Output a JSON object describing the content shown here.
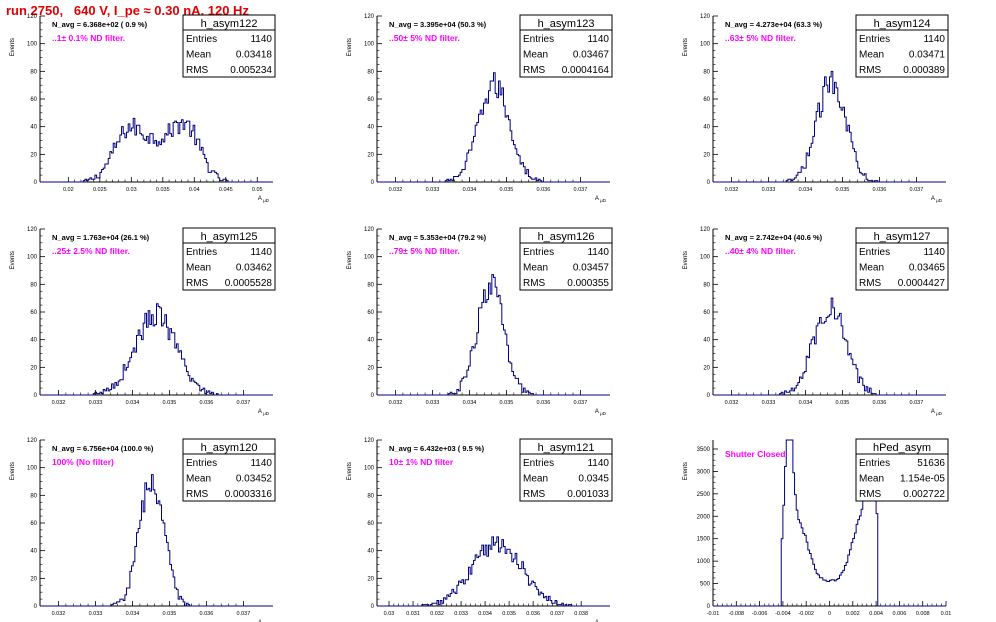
{
  "page": {
    "title": "run 2750,   640 V, I_pe ≈ 0.30 nA, 120 Hz"
  },
  "colors": {
    "title": "#e00000",
    "histogram": "#00007f",
    "annotation": "#ff00ff",
    "axis": "#000000"
  },
  "chart_data": [
    {
      "type": "histogram",
      "name": "h_asym122",
      "stats": [
        {
          "label": "Entries",
          "value": "1140"
        },
        {
          "label": "Mean",
          "value": "0.03418"
        },
        {
          "label": "RMS",
          "value": "0.005234"
        }
      ],
      "n_avg": "N_avg = 6.368e+02 ( 0.9 %)",
      "annotation": "..1± 0.1% ND filter.",
      "ylabel": "Events",
      "xlabel": "A_μD",
      "xlim": [
        0.0155,
        0.0525
      ],
      "ylim": [
        0,
        120
      ],
      "yticks": [
        0,
        20,
        40,
        60,
        80,
        100,
        120
      ],
      "xticks": [
        0.02,
        0.025,
        0.03,
        0.035,
        0.04,
        0.045,
        0.05
      ],
      "xtick_labels": [
        "0.02",
        "0.025",
        "0.03",
        "0.035",
        "0.04",
        "0.045",
        "0.05"
      ],
      "peak": {
        "center": 0.0342,
        "width": 0.0055,
        "height": 38,
        "shape": "bimodal"
      }
    },
    {
      "type": "histogram",
      "name": "h_asym123",
      "stats": [
        {
          "label": "Entries",
          "value": "1140"
        },
        {
          "label": "Mean",
          "value": "0.03467"
        },
        {
          "label": "RMS",
          "value": "0.0004164"
        }
      ],
      "n_avg": "N_avg = 3.395e+04 (50.3 %)",
      "annotation": "..50± 5% ND filter.",
      "ylabel": "Events",
      "xlabel": "A_μD",
      "xlim": [
        0.0315,
        0.0378
      ],
      "ylim": [
        0,
        120
      ],
      "yticks": [
        0,
        20,
        40,
        60,
        80,
        100,
        120
      ],
      "xticks": [
        0.032,
        0.033,
        0.034,
        0.035,
        0.036,
        0.037
      ],
      "xtick_labels": [
        "0.032",
        "0.033",
        "0.034",
        "0.035",
        "0.036",
        "0.037"
      ],
      "peak": {
        "center": 0.03467,
        "width": 0.00042,
        "height": 70,
        "shape": "gauss"
      }
    },
    {
      "type": "histogram",
      "name": "h_asym124",
      "stats": [
        {
          "label": "Entries",
          "value": "1140"
        },
        {
          "label": "Mean",
          "value": "0.03471"
        },
        {
          "label": "RMS",
          "value": "0.000389"
        }
      ],
      "n_avg": "N_avg = 4.273e+04 (63.3 %)",
      "annotation": "..63± 5% ND filter.",
      "ylabel": "Events",
      "xlabel": "A_μD",
      "xlim": [
        0.0315,
        0.0378
      ],
      "ylim": [
        0,
        120
      ],
      "yticks": [
        0,
        20,
        40,
        60,
        80,
        100,
        120
      ],
      "xticks": [
        0.032,
        0.033,
        0.034,
        0.035,
        0.036,
        0.037
      ],
      "xtick_labels": [
        "0.032",
        "0.033",
        "0.034",
        "0.035",
        "0.036",
        "0.037"
      ],
      "peak": {
        "center": 0.03471,
        "width": 0.00039,
        "height": 74,
        "shape": "gauss"
      }
    },
    {
      "type": "histogram",
      "name": "h_asym125",
      "stats": [
        {
          "label": "Entries",
          "value": "1140"
        },
        {
          "label": "Mean",
          "value": "0.03462"
        },
        {
          "label": "RMS",
          "value": "0.0005528"
        }
      ],
      "n_avg": "N_avg = 1.763e+04 (26.1 %)",
      "annotation": "..25± 2.5% ND filter.",
      "ylabel": "Events",
      "xlabel": "A_μD",
      "xlim": [
        0.0315,
        0.0378
      ],
      "ylim": [
        0,
        120
      ],
      "yticks": [
        0,
        20,
        40,
        60,
        80,
        100,
        120
      ],
      "xticks": [
        0.032,
        0.033,
        0.034,
        0.035,
        0.036,
        0.037
      ],
      "xtick_labels": [
        "0.032",
        "0.033",
        "0.034",
        "0.035",
        "0.036",
        "0.037"
      ],
      "peak": {
        "center": 0.03462,
        "width": 0.00055,
        "height": 58,
        "shape": "gauss"
      }
    },
    {
      "type": "histogram",
      "name": "h_asym126",
      "stats": [
        {
          "label": "Entries",
          "value": "1140"
        },
        {
          "label": "Mean",
          "value": "0.03457"
        },
        {
          "label": "RMS",
          "value": "0.000355"
        }
      ],
      "n_avg": "N_avg = 5.353e+04 (79.2 %)",
      "annotation": "..79± 5% ND filter.",
      "ylabel": "Events",
      "xlabel": "A_μD",
      "xlim": [
        0.0315,
        0.0378
      ],
      "ylim": [
        0,
        120
      ],
      "yticks": [
        0,
        20,
        40,
        60,
        80,
        100,
        120
      ],
      "xticks": [
        0.032,
        0.033,
        0.034,
        0.035,
        0.036,
        0.037
      ],
      "xtick_labels": [
        "0.032",
        "0.033",
        "0.034",
        "0.035",
        "0.036",
        "0.037"
      ],
      "peak": {
        "center": 0.03457,
        "width": 0.00036,
        "height": 80,
        "shape": "gauss"
      }
    },
    {
      "type": "histogram",
      "name": "h_asym127",
      "stats": [
        {
          "label": "Entries",
          "value": "1140"
        },
        {
          "label": "Mean",
          "value": "0.03465"
        },
        {
          "label": "RMS",
          "value": "0.0004427"
        }
      ],
      "n_avg": "N_avg = 2.742e+04 (40.6 %)",
      "annotation": "..40± 4% ND filter.",
      "ylabel": "Events",
      "xlabel": "A_μD",
      "xlim": [
        0.0315,
        0.0378
      ],
      "ylim": [
        0,
        120
      ],
      "yticks": [
        0,
        20,
        40,
        60,
        80,
        100,
        120
      ],
      "xticks": [
        0.032,
        0.033,
        0.034,
        0.035,
        0.036,
        0.037
      ],
      "xtick_labels": [
        "0.032",
        "0.033",
        "0.034",
        "0.035",
        "0.036",
        "0.037"
      ],
      "peak": {
        "center": 0.03465,
        "width": 0.00044,
        "height": 64,
        "shape": "gauss"
      }
    },
    {
      "type": "histogram",
      "name": "h_asym120",
      "stats": [
        {
          "label": "Entries",
          "value": "1140"
        },
        {
          "label": "Mean",
          "value": "0.03452"
        },
        {
          "label": "RMS",
          "value": "0.0003316"
        }
      ],
      "n_avg": "N_avg = 6.756e+04 (100.0 %)",
      "annotation": "100% (No filter)",
      "ylabel": "Events",
      "xlabel": "A_μD",
      "xlim": [
        0.0315,
        0.0378
      ],
      "ylim": [
        0,
        120
      ],
      "yticks": [
        0,
        20,
        40,
        60,
        80,
        100,
        120
      ],
      "xticks": [
        0.032,
        0.033,
        0.034,
        0.035,
        0.036,
        0.037
      ],
      "xtick_labels": [
        "0.032",
        "0.033",
        "0.034",
        "0.035",
        "0.036",
        "0.037"
      ],
      "peak": {
        "center": 0.03452,
        "width": 0.00033,
        "height": 92,
        "shape": "gauss"
      }
    },
    {
      "type": "histogram",
      "name": "h_asym121",
      "stats": [
        {
          "label": "Entries",
          "value": "1140"
        },
        {
          "label": "Mean",
          "value": "0.0345"
        },
        {
          "label": "RMS",
          "value": "0.001033"
        }
      ],
      "n_avg": "N_avg = 6.432e+03 ( 9.5 %)",
      "annotation": "10± 1% ND filter",
      "ylabel": "Events",
      "xlabel": "A_μD",
      "xlim": [
        0.0295,
        0.0392
      ],
      "ylim": [
        0,
        120
      ],
      "yticks": [
        0,
        20,
        40,
        60,
        80,
        100,
        120
      ],
      "xticks": [
        0.03,
        0.031,
        0.032,
        0.033,
        0.034,
        0.035,
        0.036,
        0.037,
        0.038
      ],
      "xtick_labels": [
        "0.03",
        "0.031",
        "0.032",
        "0.033",
        "0.034",
        "0.035",
        "0.036",
        "0.037",
        "0.038"
      ],
      "peak": {
        "center": 0.0345,
        "width": 0.00103,
        "height": 46,
        "shape": "gauss"
      }
    },
    {
      "type": "histogram",
      "name": "hPed_asym",
      "stats": [
        {
          "label": "Entries",
          "value": "51636"
        },
        {
          "label": "Mean",
          "value": "1.154e-05"
        },
        {
          "label": "RMS",
          "value": "0.002722"
        }
      ],
      "n_avg": "",
      "annotation": "Shutter Closed",
      "ylabel": "Events",
      "xlabel": "",
      "xlim": [
        -0.01,
        0.01
      ],
      "ylim": [
        0,
        3700
      ],
      "yticks": [
        0,
        500,
        1000,
        1500,
        2000,
        2500,
        3000,
        3500
      ],
      "xticks": [
        -0.01,
        -0.008,
        -0.006,
        -0.004,
        -0.002,
        0,
        0.002,
        0.004,
        0.006,
        0.008,
        0.01
      ],
      "xtick_labels": [
        "-0.01",
        "-0.008",
        "-0.006",
        "-0.004",
        "-0.002",
        "0",
        "0.002",
        "0.004",
        "0.006",
        "0.008",
        "0.01"
      ],
      "peak": {
        "center": 0.0,
        "width": 0.0027,
        "height": 3000,
        "shape": "pedestal"
      }
    }
  ]
}
